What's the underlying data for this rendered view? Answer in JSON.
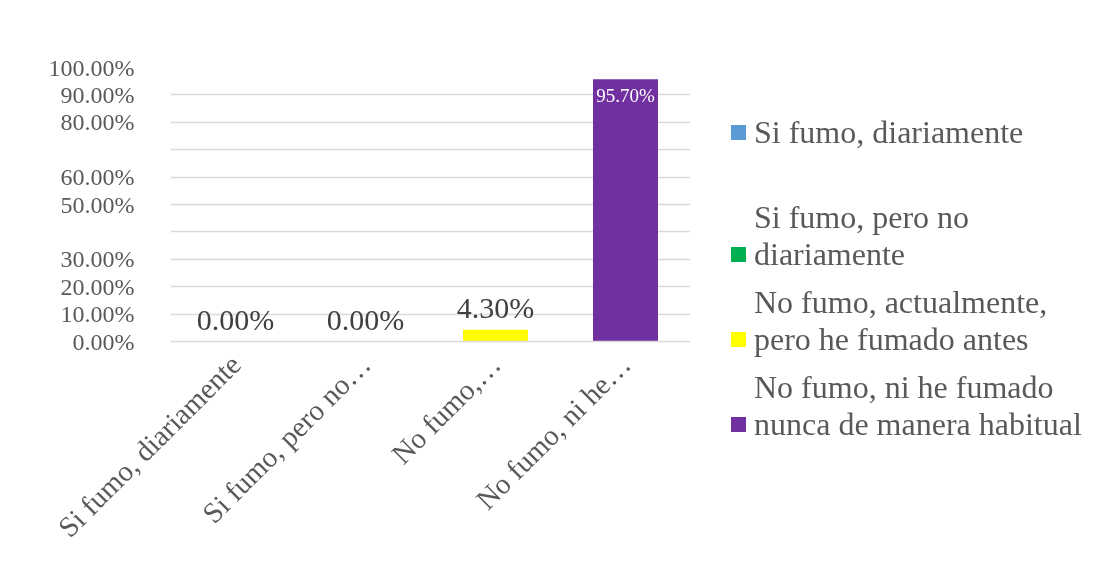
{
  "chart_data": {
    "type": "bar",
    "categories": [
      "Si fumo, diariamente",
      "Si fumo, pero no…",
      "No fumo,…",
      "No fumo, ni he…"
    ],
    "series": [
      {
        "name": "Si fumo, diariamente",
        "color": "#5b9bd5",
        "values": [
          0,
          null,
          null,
          null
        ],
        "value_labels": [
          "0.00%",
          null,
          null,
          null
        ]
      },
      {
        "name": "Si fumo, pero no diariamente",
        "color": "#00b050",
        "values": [
          null,
          0,
          null,
          null
        ],
        "value_labels": [
          null,
          "0.00%",
          null,
          null
        ]
      },
      {
        "name": "No fumo, actualmente, pero he fumado antes",
        "color": "#ffff00",
        "values": [
          null,
          null,
          4.3,
          null
        ],
        "value_labels": [
          null,
          null,
          "4.30%",
          null
        ]
      },
      {
        "name": "No fumo, ni he fumado nunca de manera habitual",
        "color": "#7030a0",
        "values": [
          null,
          null,
          null,
          95.7
        ],
        "value_labels": [
          null,
          null,
          null,
          "95.70%"
        ]
      }
    ],
    "stacked": true,
    "ylim": [
      0,
      100
    ],
    "yticks": [
      {
        "value": 0,
        "label": "0.00%"
      },
      {
        "value": 10,
        "label": "10.00%"
      },
      {
        "value": 20,
        "label": "20.00%"
      },
      {
        "value": 30,
        "label": "30.00%"
      },
      {
        "value": 40,
        "label": null
      },
      {
        "value": 50,
        "label": "50.00%"
      },
      {
        "value": 60,
        "label": "60.00%"
      },
      {
        "value": 70,
        "label": null
      },
      {
        "value": 80,
        "label": "80.00%"
      },
      {
        "value": 90,
        "label": "90.00%"
      },
      {
        "value": 100,
        "label": "100.00%"
      }
    ],
    "grid": "y",
    "legend": "right"
  }
}
